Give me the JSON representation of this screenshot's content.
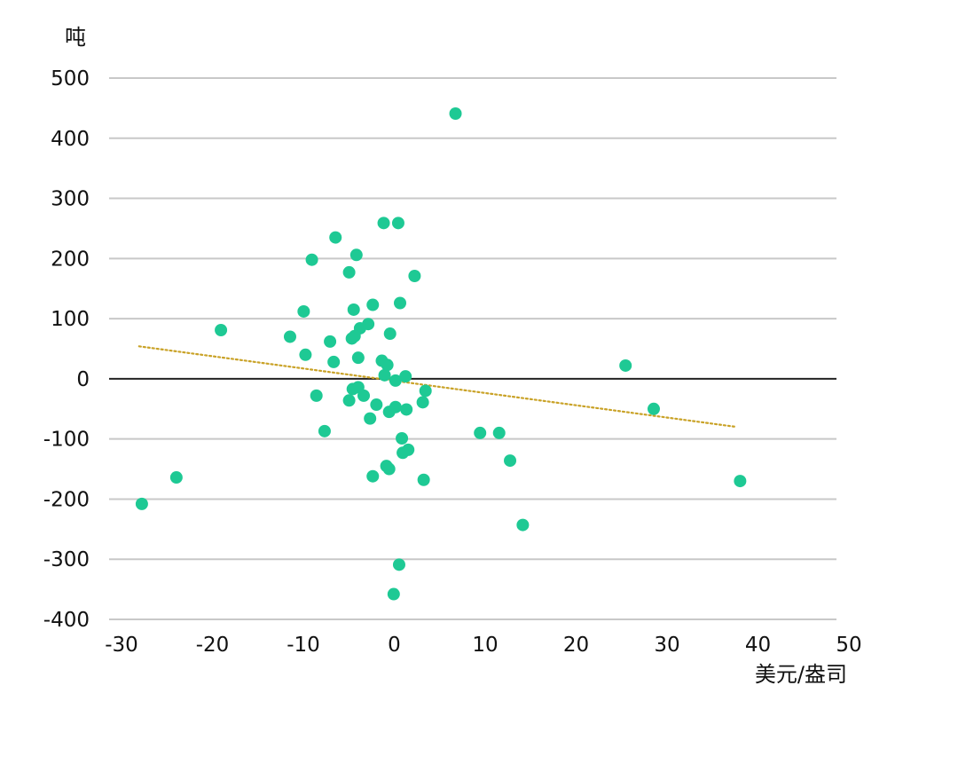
{
  "chart_data": {
    "type": "scatter",
    "title": "",
    "xlabel": "美元/盎司",
    "ylabel": "吨",
    "xlim": [
      -30,
      50
    ],
    "ylim": [
      -400,
      500
    ],
    "x_ticks": [
      -30,
      -20,
      -10,
      0,
      10,
      20,
      30,
      40,
      50
    ],
    "y_ticks": [
      500,
      400,
      300,
      200,
      100,
      0,
      -100,
      -200,
      -300,
      -400
    ],
    "x_tick_labels": [
      "-30",
      "-20",
      "-10",
      "0",
      "10",
      "20",
      "30",
      "40",
      "50"
    ],
    "y_tick_labels": [
      "500",
      "400",
      "300",
      "200",
      "100",
      "0",
      "-100",
      "-200",
      "-300",
      "-400"
    ],
    "grid": "horizontal",
    "legend": "none",
    "colors": {
      "points": "#1ec994",
      "trendline": "#c9a227",
      "grid": "#c8c8c8",
      "zero_line": "#222222"
    },
    "series": [
      {
        "points": [
          [
            8.1,
            441
          ],
          [
            0.2,
            259
          ],
          [
            1.8,
            259
          ],
          [
            -5.1,
            235
          ],
          [
            -2.8,
            206
          ],
          [
            -7.7,
            198
          ],
          [
            -3.6,
            177
          ],
          [
            3.6,
            171
          ],
          [
            2.0,
            126
          ],
          [
            -1.0,
            123
          ],
          [
            -3.1,
            115
          ],
          [
            -8.6,
            112
          ],
          [
            -1.5,
            91
          ],
          [
            -2.4,
            84
          ],
          [
            -17.7,
            81
          ],
          [
            0.9,
            75
          ],
          [
            -3.0,
            71
          ],
          [
            -3.3,
            67
          ],
          [
            -10.1,
            70
          ],
          [
            -5.7,
            62
          ],
          [
            -8.4,
            40
          ],
          [
            -2.6,
            35
          ],
          [
            -5.3,
            28
          ],
          [
            0.0,
            30
          ],
          [
            0.6,
            23
          ],
          [
            26.8,
            22
          ],
          [
            0.3,
            6
          ],
          [
            2.6,
            4
          ],
          [
            1.5,
            -3
          ],
          [
            -3.2,
            -17
          ],
          [
            -2.6,
            -14
          ],
          [
            4.8,
            -20
          ],
          [
            -7.2,
            -28
          ],
          [
            -2.0,
            -28
          ],
          [
            -3.6,
            -36
          ],
          [
            4.5,
            -39
          ],
          [
            -0.6,
            -43
          ],
          [
            1.5,
            -47
          ],
          [
            2.7,
            -51
          ],
          [
            0.8,
            -55
          ],
          [
            29.9,
            -50
          ],
          [
            -1.3,
            -66
          ],
          [
            -6.3,
            -87
          ],
          [
            10.8,
            -90
          ],
          [
            12.9,
            -90
          ],
          [
            2.2,
            -99
          ],
          [
            2.9,
            -118
          ],
          [
            2.3,
            -123
          ],
          [
            14.1,
            -136
          ],
          [
            0.5,
            -145
          ],
          [
            0.8,
            -150
          ],
          [
            -1.0,
            -162
          ],
          [
            4.6,
            -168
          ],
          [
            -22.6,
            -164
          ],
          [
            39.4,
            -170
          ],
          [
            -26.4,
            -208
          ],
          [
            15.5,
            -243
          ],
          [
            1.9,
            -309
          ],
          [
            1.3,
            -358
          ]
        ]
      }
    ],
    "trendline": {
      "style": "dotted",
      "x": [
        -26.7,
        39.0
      ],
      "y": [
        54,
        -80
      ]
    }
  }
}
